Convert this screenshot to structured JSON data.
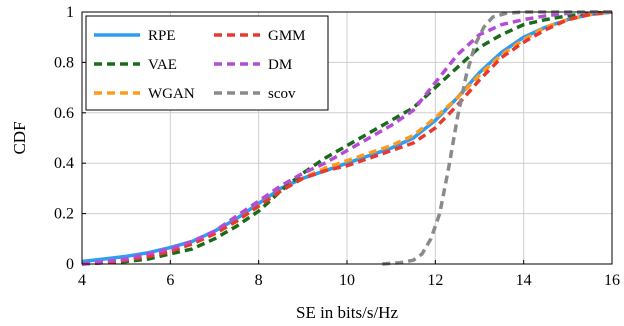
{
  "chart_data": {
    "type": "line",
    "title": "",
    "xlabel": "SE in bits/s/Hz",
    "ylabel": "CDF",
    "xlim": [
      4,
      16
    ],
    "ylim": [
      0,
      1
    ],
    "x_ticks": [
      "4",
      "6",
      "8",
      "10",
      "12",
      "14",
      "16"
    ],
    "y_ticks": [
      "0",
      "0.2",
      "0.4",
      "0.6",
      "0.8",
      "1"
    ],
    "grid": true,
    "legend_position": "top-left",
    "legend_columns": 2,
    "series": [
      {
        "name": "RPE",
        "color": "#2a9df4",
        "dashed": false,
        "x": [
          4,
          4.5,
          5,
          5.5,
          6,
          6.5,
          7,
          7.5,
          8,
          8.5,
          9,
          9.5,
          10,
          10.5,
          11,
          11.5,
          12,
          12.5,
          13,
          13.5,
          14,
          14.5,
          15,
          15.5,
          16
        ],
        "y": [
          0.01,
          0.02,
          0.03,
          0.045,
          0.065,
          0.09,
          0.13,
          0.18,
          0.24,
          0.3,
          0.34,
          0.37,
          0.4,
          0.43,
          0.46,
          0.5,
          0.57,
          0.66,
          0.76,
          0.84,
          0.9,
          0.94,
          0.97,
          0.99,
          1.0
        ]
      },
      {
        "name": "VAE",
        "color": "#1a6b1a",
        "dashed": true,
        "x": [
          4,
          4.5,
          5,
          5.5,
          6,
          6.5,
          7,
          7.5,
          8,
          8.5,
          9,
          9.5,
          10,
          10.5,
          11,
          11.5,
          12,
          12.5,
          13,
          13.5,
          14,
          14.5,
          15,
          15.5,
          16
        ],
        "y": [
          0.0,
          0.005,
          0.01,
          0.02,
          0.04,
          0.06,
          0.1,
          0.15,
          0.21,
          0.29,
          0.36,
          0.42,
          0.47,
          0.52,
          0.57,
          0.62,
          0.7,
          0.78,
          0.86,
          0.91,
          0.95,
          0.97,
          0.985,
          0.995,
          1.0
        ]
      },
      {
        "name": "WGAN",
        "color": "#ff9a1f",
        "dashed": true,
        "x": [
          4,
          4.5,
          5,
          5.5,
          6,
          6.5,
          7,
          7.5,
          8,
          8.5,
          9,
          9.5,
          10,
          10.5,
          11,
          11.5,
          12,
          12.5,
          13,
          13.5,
          14,
          14.5,
          15,
          15.5,
          16
        ],
        "y": [
          0.0,
          0.01,
          0.02,
          0.035,
          0.055,
          0.08,
          0.12,
          0.17,
          0.23,
          0.29,
          0.34,
          0.38,
          0.41,
          0.44,
          0.47,
          0.51,
          0.58,
          0.66,
          0.75,
          0.83,
          0.89,
          0.94,
          0.97,
          0.99,
          1.0
        ]
      },
      {
        "name": "GMM",
        "color": "#e8392e",
        "dashed": true,
        "x": [
          4,
          4.5,
          5,
          5.5,
          6,
          6.5,
          7,
          7.5,
          8,
          8.5,
          9,
          9.5,
          10,
          10.5,
          11,
          11.5,
          12,
          12.5,
          13,
          13.5,
          14,
          14.5,
          15,
          15.5,
          16
        ],
        "y": [
          0.0,
          0.005,
          0.015,
          0.03,
          0.05,
          0.08,
          0.12,
          0.17,
          0.23,
          0.29,
          0.34,
          0.37,
          0.39,
          0.42,
          0.45,
          0.48,
          0.54,
          0.63,
          0.73,
          0.82,
          0.88,
          0.93,
          0.97,
          0.99,
          1.0
        ]
      },
      {
        "name": "DM",
        "color": "#b44cd6",
        "dashed": true,
        "x": [
          4,
          4.5,
          5,
          5.5,
          6,
          6.5,
          7,
          7.5,
          8,
          8.5,
          9,
          9.5,
          10,
          10.5,
          11,
          11.5,
          12,
          12.5,
          13,
          13.5,
          14,
          14.5,
          15,
          15.5,
          16
        ],
        "y": [
          0.0,
          0.01,
          0.02,
          0.04,
          0.06,
          0.09,
          0.13,
          0.19,
          0.25,
          0.31,
          0.36,
          0.4,
          0.45,
          0.5,
          0.55,
          0.61,
          0.72,
          0.83,
          0.91,
          0.95,
          0.97,
          0.985,
          0.995,
          1.0,
          1.0
        ]
      },
      {
        "name": "scov",
        "color": "#8a8a8a",
        "dashed": true,
        "x": [
          10.8,
          11.2,
          11.5,
          11.7,
          11.9,
          12.1,
          12.3,
          12.5,
          12.7,
          12.9,
          13.1,
          13.3,
          13.6,
          14,
          16
        ],
        "y": [
          0.0,
          0.005,
          0.015,
          0.04,
          0.1,
          0.2,
          0.38,
          0.58,
          0.75,
          0.87,
          0.94,
          0.98,
          0.995,
          1.0,
          1.0
        ]
      }
    ]
  }
}
